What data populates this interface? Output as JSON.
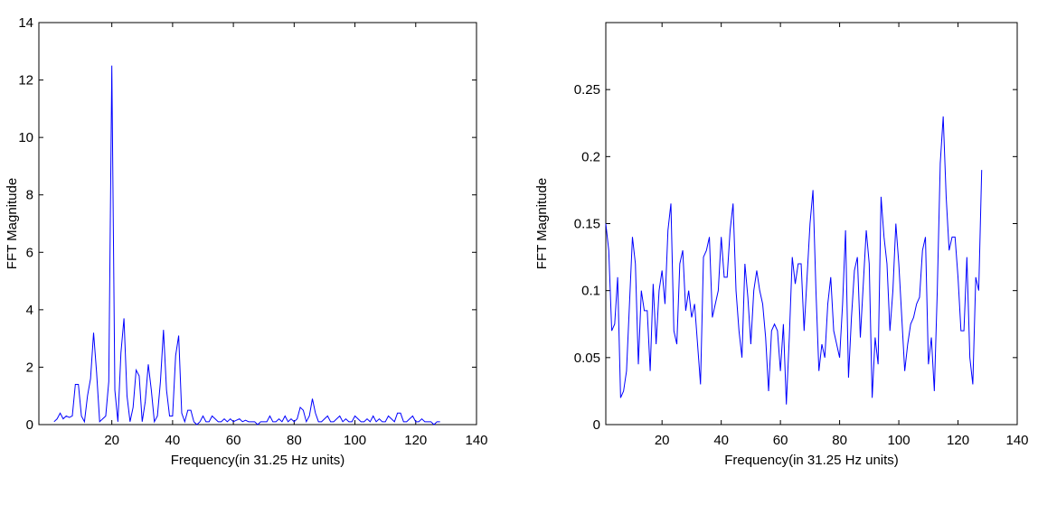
{
  "chart_data": [
    {
      "type": "line",
      "xlabel": "Frequency(in 31.25 Hz units)",
      "ylabel": "FFT Magnitude",
      "xlim": [
        -4,
        140
      ],
      "ylim": [
        0,
        14
      ],
      "xticks": [
        20,
        40,
        60,
        80,
        100,
        120,
        140
      ],
      "yticks": [
        0,
        2,
        4,
        6,
        8,
        10,
        12,
        14
      ],
      "x": [
        1,
        2,
        3,
        4,
        5,
        6,
        7,
        8,
        9,
        10,
        11,
        12,
        13,
        14,
        15,
        16,
        17,
        18,
        19,
        20,
        21,
        22,
        23,
        24,
        25,
        26,
        27,
        28,
        29,
        30,
        31,
        32,
        33,
        34,
        35,
        36,
        37,
        38,
        39,
        40,
        41,
        42,
        43,
        44,
        45,
        46,
        47,
        48,
        49,
        50,
        51,
        52,
        53,
        54,
        55,
        56,
        57,
        58,
        59,
        60,
        61,
        62,
        63,
        64,
        65,
        66,
        67,
        68,
        69,
        70,
        71,
        72,
        73,
        74,
        75,
        76,
        77,
        78,
        79,
        80,
        81,
        82,
        83,
        84,
        85,
        86,
        87,
        88,
        89,
        90,
        91,
        92,
        93,
        94,
        95,
        96,
        97,
        98,
        99,
        100,
        101,
        102,
        103,
        104,
        105,
        106,
        107,
        108,
        109,
        110,
        111,
        112,
        113,
        114,
        115,
        116,
        117,
        118,
        119,
        120,
        121,
        122,
        123,
        124,
        125,
        126,
        127,
        128
      ],
      "series": [
        {
          "color": "#0000ff",
          "values": [
            0.1,
            0.2,
            0.4,
            0.2,
            0.3,
            0.25,
            0.3,
            1.4,
            1.4,
            0.3,
            0.1,
            1.0,
            1.6,
            3.2,
            1.8,
            0.1,
            0.2,
            0.3,
            1.5,
            12.5,
            1.2,
            0.1,
            2.5,
            3.7,
            1.0,
            0.1,
            0.6,
            1.9,
            1.7,
            0.1,
            0.8,
            2.1,
            1.2,
            0.1,
            0.3,
            1.5,
            3.3,
            1.2,
            0.3,
            0.3,
            2.4,
            3.1,
            0.4,
            0.1,
            0.5,
            0.5,
            0.1,
            0.0,
            0.1,
            0.3,
            0.1,
            0.1,
            0.3,
            0.2,
            0.1,
            0.1,
            0.2,
            0.1,
            0.2,
            0.1,
            0.15,
            0.2,
            0.1,
            0.15,
            0.1,
            0.1,
            0.1,
            0.0,
            0.1,
            0.1,
            0.1,
            0.3,
            0.1,
            0.1,
            0.2,
            0.1,
            0.3,
            0.1,
            0.2,
            0.1,
            0.2,
            0.6,
            0.5,
            0.1,
            0.3,
            0.9,
            0.4,
            0.1,
            0.1,
            0.2,
            0.3,
            0.1,
            0.1,
            0.2,
            0.3,
            0.1,
            0.2,
            0.1,
            0.1,
            0.3,
            0.2,
            0.1,
            0.1,
            0.2,
            0.1,
            0.3,
            0.1,
            0.2,
            0.1,
            0.1,
            0.3,
            0.2,
            0.1,
            0.4,
            0.4,
            0.1,
            0.1,
            0.2,
            0.3,
            0.1,
            0.1,
            0.2,
            0.1,
            0.1,
            0.1,
            0.0,
            0.1,
            0.1
          ]
        }
      ]
    },
    {
      "type": "line",
      "xlabel": "Frequency(in 31.25 Hz units)",
      "ylabel": "FFT Magnitude",
      "xlim": [
        1,
        140
      ],
      "ylim": [
        0,
        0.3
      ],
      "xticks": [
        20,
        40,
        60,
        80,
        100,
        120,
        140
      ],
      "yticks": [
        0,
        0.05,
        0.1,
        0.15,
        0.2,
        0.25
      ],
      "x": [
        1,
        2,
        3,
        4,
        5,
        6,
        7,
        8,
        9,
        10,
        11,
        12,
        13,
        14,
        15,
        16,
        17,
        18,
        19,
        20,
        21,
        22,
        23,
        24,
        25,
        26,
        27,
        28,
        29,
        30,
        31,
        32,
        33,
        34,
        35,
        36,
        37,
        38,
        39,
        40,
        41,
        42,
        43,
        44,
        45,
        46,
        47,
        48,
        49,
        50,
        51,
        52,
        53,
        54,
        55,
        56,
        57,
        58,
        59,
        60,
        61,
        62,
        63,
        64,
        65,
        66,
        67,
        68,
        69,
        70,
        71,
        72,
        73,
        74,
        75,
        76,
        77,
        78,
        79,
        80,
        81,
        82,
        83,
        84,
        85,
        86,
        87,
        88,
        89,
        90,
        91,
        92,
        93,
        94,
        95,
        96,
        97,
        98,
        99,
        100,
        101,
        102,
        103,
        104,
        105,
        106,
        107,
        108,
        109,
        110,
        111,
        112,
        113,
        114,
        115,
        116,
        117,
        118,
        119,
        120,
        121,
        122,
        123,
        124,
        125,
        126,
        127,
        128
      ],
      "series": [
        {
          "color": "#0000ff",
          "values": [
            0.15,
            0.13,
            0.07,
            0.075,
            0.11,
            0.02,
            0.025,
            0.04,
            0.09,
            0.14,
            0.12,
            0.045,
            0.1,
            0.085,
            0.085,
            0.04,
            0.105,
            0.06,
            0.1,
            0.115,
            0.09,
            0.145,
            0.165,
            0.07,
            0.06,
            0.12,
            0.13,
            0.085,
            0.1,
            0.08,
            0.09,
            0.06,
            0.03,
            0.125,
            0.13,
            0.14,
            0.08,
            0.09,
            0.1,
            0.14,
            0.11,
            0.11,
            0.145,
            0.165,
            0.1,
            0.07,
            0.05,
            0.12,
            0.095,
            0.06,
            0.1,
            0.115,
            0.1,
            0.09,
            0.065,
            0.025,
            0.07,
            0.075,
            0.07,
            0.04,
            0.075,
            0.015,
            0.065,
            0.125,
            0.105,
            0.12,
            0.12,
            0.07,
            0.11,
            0.15,
            0.175,
            0.1,
            0.04,
            0.06,
            0.05,
            0.09,
            0.11,
            0.07,
            0.06,
            0.05,
            0.09,
            0.145,
            0.035,
            0.08,
            0.115,
            0.125,
            0.065,
            0.105,
            0.145,
            0.12,
            0.02,
            0.065,
            0.045,
            0.17,
            0.14,
            0.12,
            0.07,
            0.1,
            0.15,
            0.12,
            0.08,
            0.04,
            0.06,
            0.075,
            0.08,
            0.09,
            0.095,
            0.13,
            0.14,
            0.045,
            0.065,
            0.025,
            0.1,
            0.195,
            0.23,
            0.17,
            0.13,
            0.14,
            0.14,
            0.11,
            0.07,
            0.07,
            0.125,
            0.05,
            0.03,
            0.11,
            0.1,
            0.19
          ]
        }
      ]
    }
  ]
}
